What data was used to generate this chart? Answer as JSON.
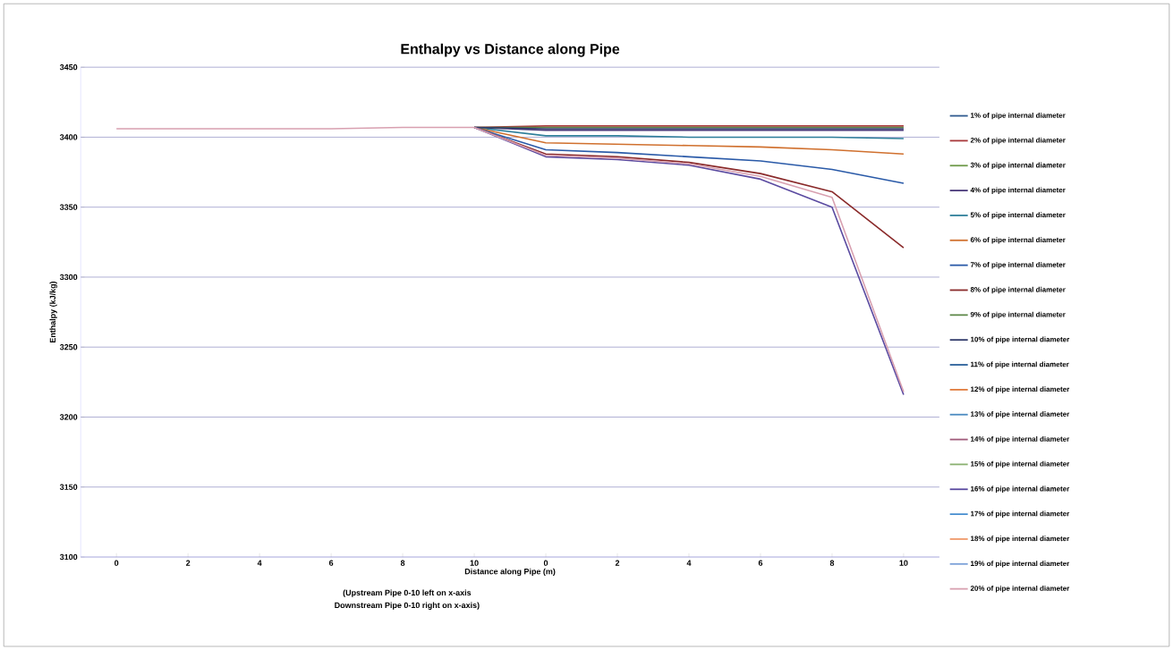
{
  "chart_data": {
    "type": "line",
    "title": "Enthalpy vs Distance along Pipe",
    "xlabel": "Distance along Pipe (m)",
    "ylabel": "Enthalpy (kJ/kg)",
    "annotations": [
      "(Upstream Pipe 0-10 left on x-axis",
      "Downstream Pipe 0-10 right on x-axis)"
    ],
    "categories": [
      "0",
      "2",
      "4",
      "6",
      "8",
      "10",
      "0",
      "2",
      "4",
      "6",
      "8",
      "10"
    ],
    "ylim": [
      3100,
      3450
    ],
    "yticks": [
      3100,
      3150,
      3200,
      3250,
      3300,
      3350,
      3400,
      3450
    ],
    "grid": "y",
    "legend": "right",
    "marker": "none",
    "line_style": "solid",
    "series": [
      {
        "name": "1% of pipe internal diameter",
        "color": "#2f5a8f",
        "values": [
          null,
          null,
          null,
          null,
          null,
          null,
          null,
          null,
          null,
          null,
          null,
          null
        ]
      },
      {
        "name": "2% of pipe internal diameter",
        "color": "#a8383a",
        "values": [
          null,
          null,
          null,
          null,
          null,
          3407,
          3408,
          3408,
          3408,
          3408,
          3408,
          3408
        ]
      },
      {
        "name": "3% of pipe internal diameter",
        "color": "#6f9a4a",
        "values": [
          null,
          null,
          null,
          null,
          null,
          null,
          null,
          null,
          null,
          null,
          null,
          null
        ]
      },
      {
        "name": "4% of pipe internal diameter",
        "color": "#4a3a7a",
        "values": [
          null,
          null,
          null,
          null,
          null,
          3407,
          3405,
          3405,
          3405,
          3405,
          3405,
          3405
        ]
      },
      {
        "name": "5% of pipe internal diameter",
        "color": "#2e7f9a",
        "values": [
          null,
          null,
          null,
          null,
          null,
          3407,
          3401,
          3401,
          3400,
          3400,
          3400,
          3399
        ]
      },
      {
        "name": "6% of pipe internal diameter",
        "color": "#d0702e",
        "values": [
          null,
          null,
          null,
          null,
          null,
          3407,
          3396,
          3395,
          3394,
          3393,
          3391,
          3388
        ]
      },
      {
        "name": "7% of pipe internal diameter",
        "color": "#2a5aa8",
        "values": [
          null,
          null,
          null,
          null,
          null,
          3407,
          3391,
          3389,
          3386,
          3383,
          3377,
          3367
        ]
      },
      {
        "name": "8% of pipe internal diameter",
        "color": "#8a2a2a",
        "values": [
          null,
          null,
          null,
          null,
          null,
          3407,
          3388,
          3386,
          3382,
          3374,
          3361,
          3321
        ]
      },
      {
        "name": "9% of pipe internal diameter",
        "color": "#5f8a4a",
        "values": [
          null,
          null,
          null,
          null,
          null,
          3407,
          3407,
          3407,
          3407,
          3407,
          3407,
          3407
        ]
      },
      {
        "name": "10% of pipe internal diameter",
        "color": "#303a6a",
        "values": [
          null,
          null,
          null,
          null,
          null,
          3407,
          3406,
          3406,
          3406,
          3406,
          3406,
          3406
        ]
      },
      {
        "name": "11% of pipe internal diameter",
        "color": "#2a5f9a",
        "values": [
          null,
          null,
          null,
          null,
          null,
          null,
          null,
          null,
          null,
          null,
          null,
          null
        ]
      },
      {
        "name": "12% of pipe internal diameter",
        "color": "#e07a3a",
        "values": [
          null,
          null,
          null,
          null,
          null,
          null,
          null,
          null,
          null,
          null,
          null,
          null
        ]
      },
      {
        "name": "13% of pipe internal diameter",
        "color": "#4a8ac0",
        "values": [
          null,
          null,
          null,
          null,
          null,
          null,
          null,
          null,
          null,
          null,
          null,
          null
        ]
      },
      {
        "name": "14% of pipe internal diameter",
        "color": "#a05a7a",
        "values": [
          null,
          null,
          null,
          null,
          null,
          null,
          null,
          null,
          null,
          null,
          null,
          null
        ]
      },
      {
        "name": "15% of pipe internal diameter",
        "color": "#8ab070",
        "values": [
          null,
          null,
          null,
          null,
          null,
          null,
          null,
          null,
          null,
          null,
          null,
          null
        ]
      },
      {
        "name": "16% of pipe internal diameter",
        "color": "#5a4aa0",
        "values": [
          null,
          null,
          null,
          null,
          null,
          3407,
          3386,
          3384,
          3380,
          3370,
          3350,
          3216
        ]
      },
      {
        "name": "17% of pipe internal diameter",
        "color": "#4a90d0",
        "values": [
          null,
          null,
          null,
          null,
          null,
          null,
          null,
          null,
          null,
          null,
          null,
          null
        ]
      },
      {
        "name": "18% of pipe internal diameter",
        "color": "#f09a6a",
        "values": [
          null,
          null,
          null,
          null,
          null,
          null,
          null,
          null,
          null,
          null,
          null,
          null
        ]
      },
      {
        "name": "19% of pipe internal diameter",
        "color": "#7aa0d8",
        "values": [
          null,
          null,
          null,
          null,
          null,
          null,
          null,
          null,
          null,
          null,
          null,
          null
        ]
      },
      {
        "name": "20% of pipe internal diameter",
        "color": "#d8a0b0",
        "values": [
          3406,
          3406,
          3406,
          3406,
          3407,
          3407,
          3387,
          3385,
          3381,
          3372,
          3357,
          3218
        ]
      }
    ]
  }
}
